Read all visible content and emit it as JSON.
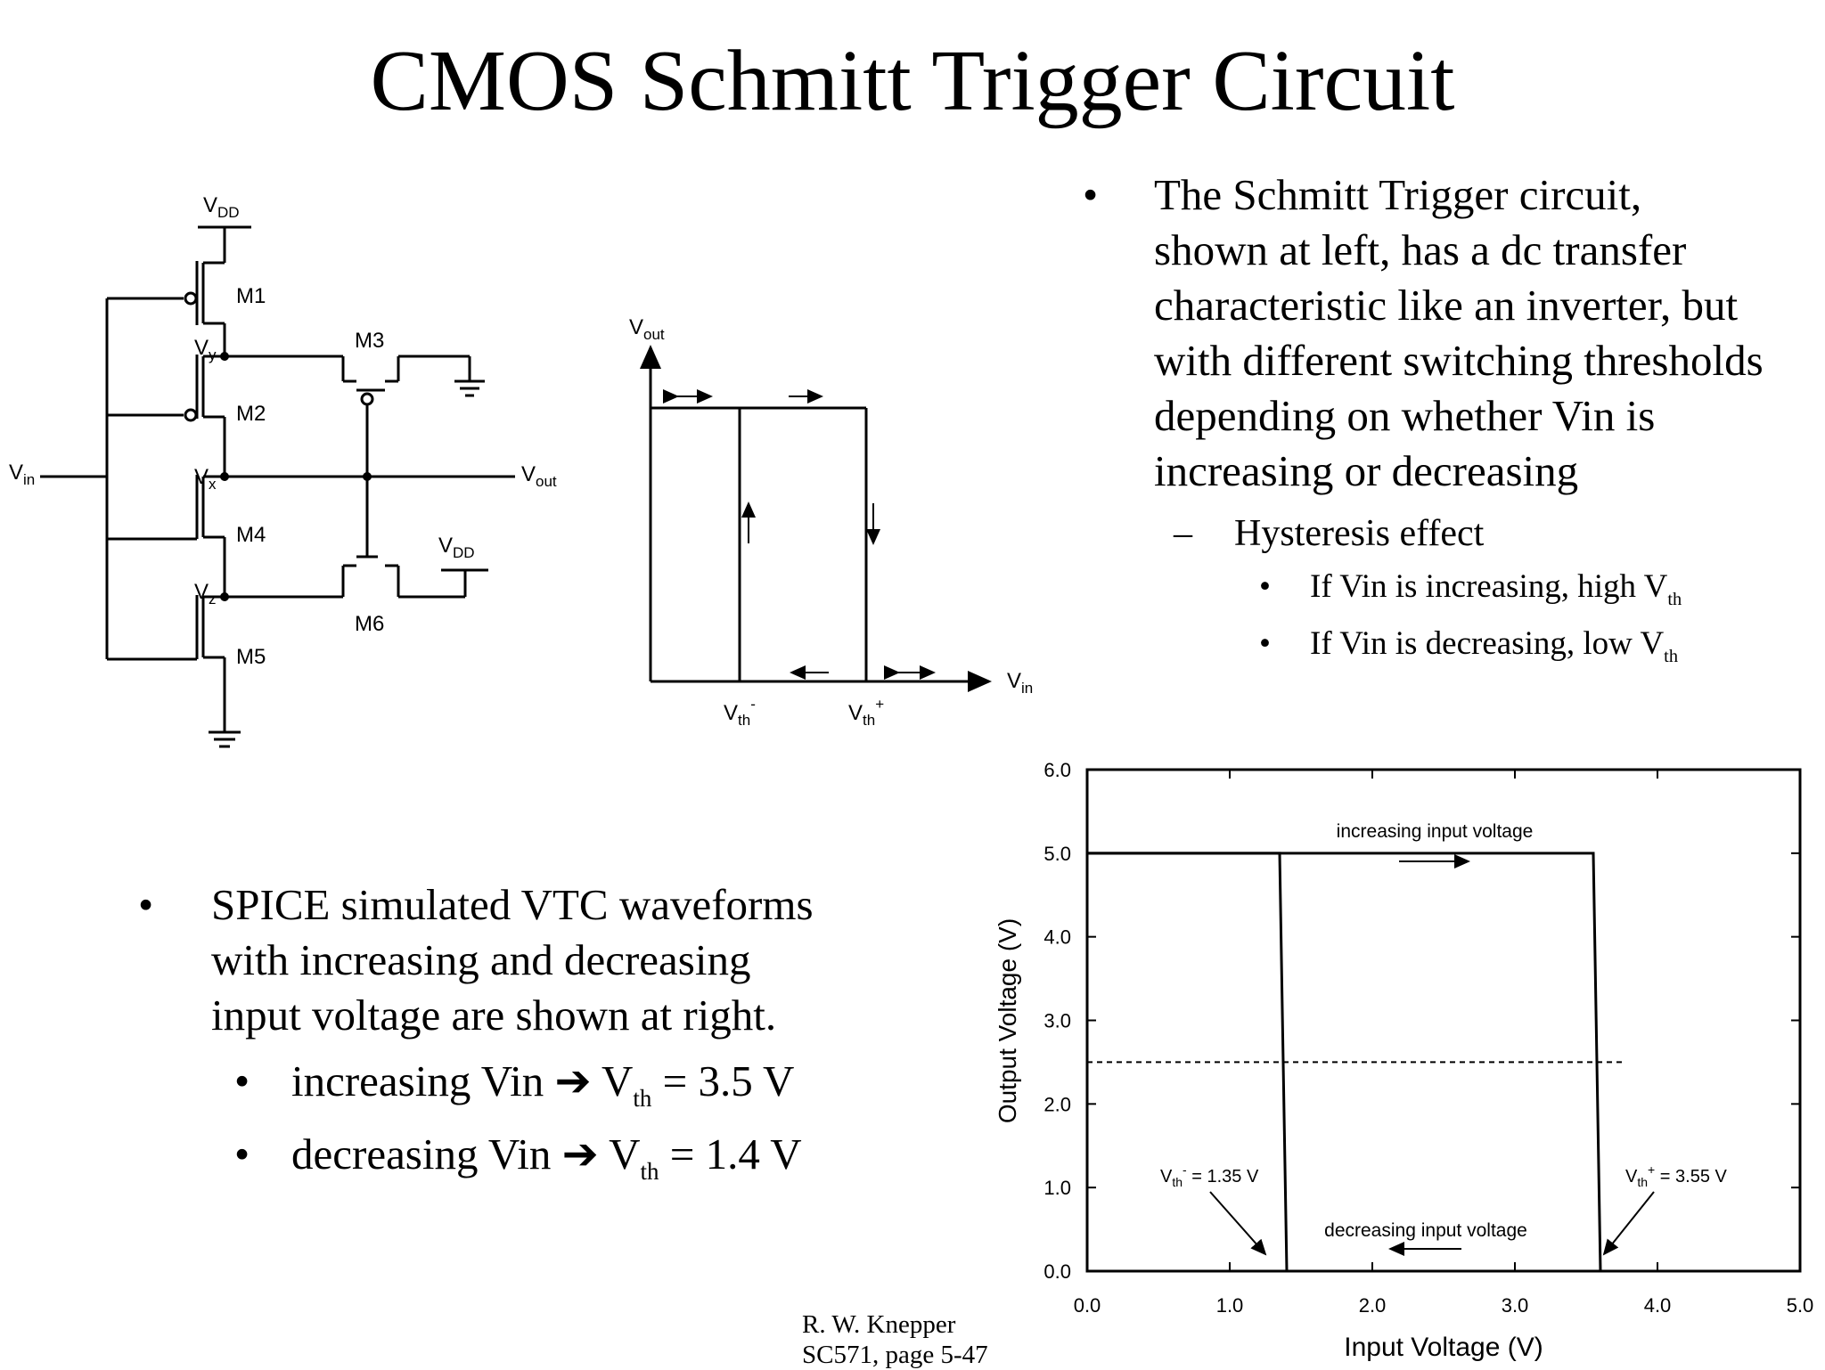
{
  "slide": {
    "title": "CMOS Schmitt Trigger Circuit",
    "footer_line1": "R. W. Knepper",
    "footer_line2": "SC571, page 5-47"
  },
  "right_text": {
    "bullet_char": "•",
    "dash_char": "–",
    "main_lines": [
      "The Schmitt Trigger circuit,",
      "shown at left, has a dc transfer",
      "characteristic like an inverter, but",
      "with different switching thresholds",
      "depending on whether Vin is",
      "increasing or decreasing"
    ],
    "sub_bullet": "Hysteresis effect",
    "sub_items": [
      {
        "text": "If Vin is increasing, high V",
        "sub": "th"
      },
      {
        "text": "If Vin is decreasing, low V",
        "sub": "th"
      }
    ]
  },
  "left_text": {
    "main_lines": [
      "SPICE simulated VTC waveforms",
      "with increasing and decreasing",
      "input voltage are shown at right."
    ],
    "items": [
      {
        "pre": "increasing Vin ",
        "arrow": "➔",
        "v": " V",
        "sub": "th",
        "post": " = 3.5 V"
      },
      {
        "pre": "decreasing Vin ",
        "arrow": "➔",
        "v": " V",
        "sub": "th",
        "post": " = 1.4 V"
      }
    ]
  },
  "schematic": {
    "vdd": "V",
    "vdd_sub": "DD",
    "vin": "V",
    "vin_sub": "in",
    "vout": "V",
    "vout_sub": "out",
    "vy": "V",
    "vy_sub": "y",
    "vx": "V",
    "vx_sub": "x",
    "vz": "V",
    "vz_sub": "z",
    "m1": "M1",
    "m2": "M2",
    "m3": "M3",
    "m4": "M4",
    "m5": "M5",
    "m6": "M6"
  },
  "hysteresis": {
    "y_label": "V",
    "y_sub": "out",
    "x_label": "V",
    "x_sub": "in",
    "vth_minus": "V",
    "vth_minus_sub": "th",
    "vth_minus_sup": "-",
    "vth_plus": "V",
    "vth_plus_sub": "th",
    "vth_plus_sup": "+"
  },
  "chart_data": {
    "type": "line",
    "xlabel": "Input Voltage (V)",
    "ylabel": "Output Voltage (V)",
    "xlim": [
      0,
      5
    ],
    "ylim": [
      0,
      6
    ],
    "x_ticks": [
      "0.0",
      "1.0",
      "2.0",
      "3.0",
      "4.0",
      "5.0"
    ],
    "y_ticks": [
      "0.0",
      "1.0",
      "2.0",
      "3.0",
      "4.0",
      "5.0",
      "6.0"
    ],
    "series": [
      {
        "x": [
          0,
          3.55,
          3.6,
          5
        ],
        "y": [
          5.0,
          5.0,
          0,
          0
        ]
      },
      {
        "x": [
          0,
          1.35,
          1.4,
          5
        ],
        "y": [
          5.0,
          5.0,
          0,
          0
        ]
      }
    ],
    "midline_y": 2.5,
    "annotations": {
      "increasing": "increasing input voltage",
      "decreasing": "decreasing input voltage",
      "vth_minus_label": "V",
      "vth_minus_sub": "th",
      "vth_minus_sup": "-",
      "vth_minus_val": " = 1.35 V",
      "vth_plus_label": "V",
      "vth_plus_sub": "th",
      "vth_plus_sup": "+",
      "vth_plus_val": " = 3.55 V"
    }
  }
}
